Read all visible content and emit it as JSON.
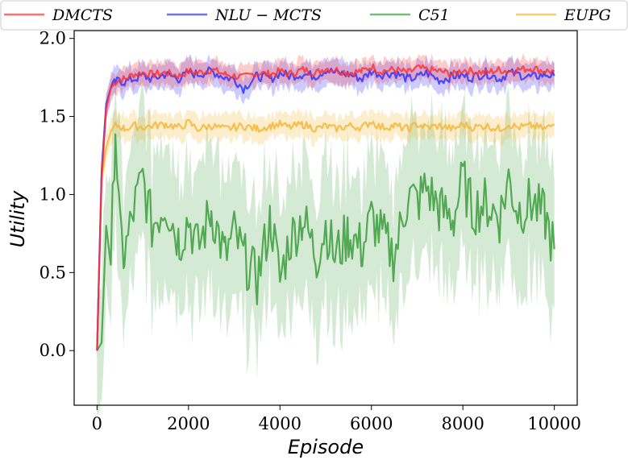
{
  "chart_data": {
    "type": "line",
    "title": "",
    "xlabel": "Episode",
    "ylabel": "Utility",
    "xlim": [
      -500,
      10500
    ],
    "ylim": [
      -0.35,
      2.05
    ],
    "xticks": [
      0,
      2000,
      4000,
      6000,
      8000,
      10000
    ],
    "yticks": [
      0.0,
      0.5,
      1.0,
      1.5,
      2.0
    ],
    "xtick_labels": [
      "0",
      "2000",
      "4000",
      "6000",
      "8000",
      "10000"
    ],
    "ytick_labels": [
      "0.0",
      "0.5",
      "1.0",
      "1.5",
      "2.0"
    ],
    "grid": false,
    "legend_position": "top",
    "x": [
      0,
      100,
      200,
      300,
      400,
      500,
      600,
      800,
      1000,
      1200,
      1500,
      1800,
      2000,
      2200,
      2500,
      2800,
      3000,
      3200,
      3500,
      3800,
      4000,
      4200,
      4500,
      4800,
      5000,
      5200,
      5500,
      5800,
      6000,
      6200,
      6500,
      6800,
      7000,
      7200,
      7500,
      7800,
      8000,
      8200,
      8500,
      8800,
      9000,
      9200,
      9500,
      9800,
      10000
    ],
    "series": [
      {
        "name": "DMCTS",
        "color": "#ff3333",
        "values": [
          0.0,
          1.1,
          1.55,
          1.68,
          1.72,
          1.74,
          1.74,
          1.77,
          1.78,
          1.77,
          1.78,
          1.76,
          1.79,
          1.78,
          1.8,
          1.77,
          1.76,
          1.75,
          1.78,
          1.77,
          1.79,
          1.77,
          1.8,
          1.78,
          1.81,
          1.8,
          1.78,
          1.79,
          1.82,
          1.79,
          1.8,
          1.78,
          1.81,
          1.8,
          1.79,
          1.77,
          1.8,
          1.79,
          1.78,
          1.8,
          1.79,
          1.8,
          1.81,
          1.79,
          1.79
        ],
        "band": 0.07
      },
      {
        "name": "NLU−MCTS",
        "color": "#3333ff",
        "values": [
          0.0,
          1.15,
          1.58,
          1.68,
          1.72,
          1.73,
          1.72,
          1.74,
          1.76,
          1.74,
          1.77,
          1.74,
          1.78,
          1.77,
          1.79,
          1.75,
          1.74,
          1.68,
          1.76,
          1.74,
          1.78,
          1.76,
          1.77,
          1.76,
          1.8,
          1.78,
          1.77,
          1.74,
          1.79,
          1.77,
          1.78,
          1.74,
          1.75,
          1.78,
          1.73,
          1.76,
          1.76,
          1.75,
          1.78,
          1.74,
          1.78,
          1.77,
          1.75,
          1.77,
          1.76
        ],
        "band": 0.08
      },
      {
        "name": "C51",
        "color": "#3c9e3c",
        "values": [
          0.0,
          0.05,
          0.8,
          0.55,
          1.45,
          0.75,
          0.6,
          0.9,
          1.1,
          0.8,
          0.95,
          0.7,
          0.85,
          0.65,
          0.9,
          0.6,
          0.75,
          0.6,
          0.45,
          0.85,
          0.45,
          0.7,
          0.85,
          0.6,
          0.8,
          0.6,
          0.75,
          0.65,
          0.85,
          0.75,
          0.6,
          1.0,
          0.95,
          1.05,
          0.9,
          0.85,
          1.1,
          0.9,
          0.95,
          0.85,
          1.1,
          0.9,
          0.95,
          0.85,
          0.65
        ],
        "band": 0.45
      },
      {
        "name": "EUPG",
        "color": "#f5b636",
        "values": [
          0.0,
          1.1,
          1.3,
          1.4,
          1.44,
          1.44,
          1.42,
          1.44,
          1.43,
          1.44,
          1.45,
          1.43,
          1.46,
          1.42,
          1.44,
          1.42,
          1.43,
          1.44,
          1.42,
          1.44,
          1.45,
          1.43,
          1.45,
          1.42,
          1.44,
          1.42,
          1.44,
          1.43,
          1.47,
          1.43,
          1.44,
          1.42,
          1.45,
          1.43,
          1.44,
          1.42,
          1.45,
          1.43,
          1.44,
          1.42,
          1.45,
          1.43,
          1.44,
          1.42,
          1.45
        ],
        "band": 0.08
      }
    ]
  },
  "legend": {
    "entries": [
      "DMCTS",
      "NLU − MCTS",
      "C51",
      "EUPG"
    ]
  },
  "axes": {
    "xlabel": "Episode",
    "ylabel": "Utility"
  }
}
